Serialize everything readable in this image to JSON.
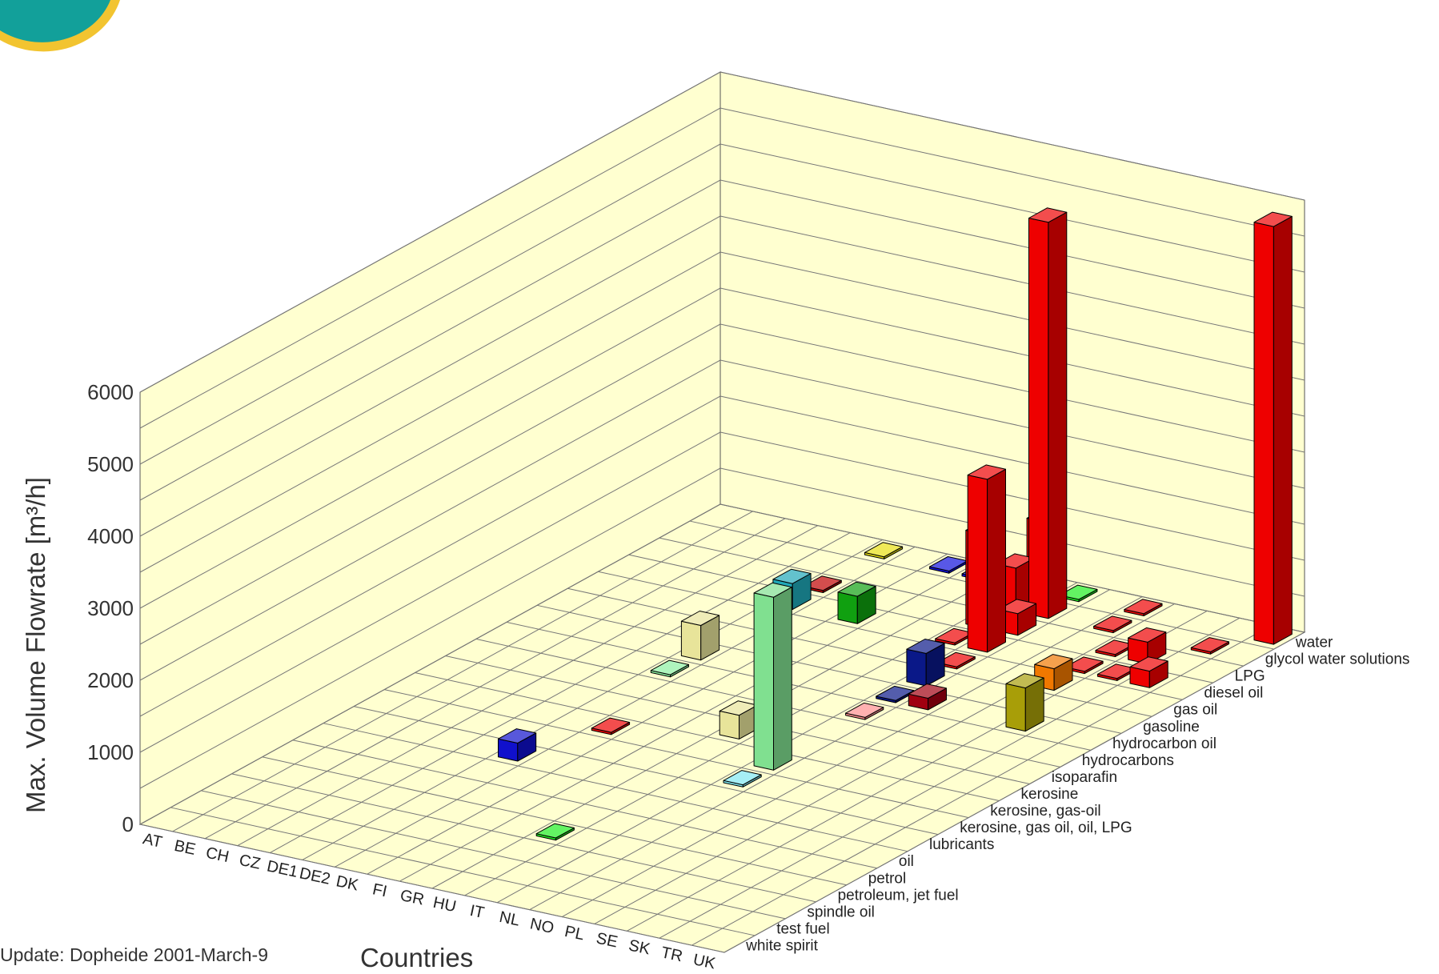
{
  "chart_data": {
    "type": "bar3d",
    "ylabel": "Max. Volume Flowrate [m³/h]",
    "xlabel": "Countries",
    "ylim": [
      0,
      6000
    ],
    "yticks": [
      0,
      1000,
      2000,
      3000,
      4000,
      5000,
      6000
    ],
    "countries": [
      "AT",
      "BE",
      "CH",
      "CZ",
      "DE1",
      "DE2",
      "DK",
      "FI",
      "GR",
      "HU",
      "IT",
      "NL",
      "NO",
      "PL",
      "SE",
      "SK",
      "TR",
      "UK"
    ],
    "fluids": [
      "white spirit",
      "test fuel",
      "spindle oil",
      "petroleum, jet fuel",
      "petrol",
      "oil",
      "lubricants",
      "kerosine, gas oil, oil, LPG",
      "kerosine, gas-oil",
      "kerosine",
      "isoparafin",
      "hydrocarbons",
      "hydrocarbon oil",
      "gasoline",
      "gas oil",
      "diesel oil",
      "LPG",
      "glycol water solutions",
      "water"
    ],
    "grid": true,
    "bars": [
      {
        "country": "DE2",
        "fluid": "lubricants",
        "value": 250,
        "color": "#1010cc"
      },
      {
        "country": "DE2",
        "fluid": "hydrocarbon oil",
        "value": 480,
        "color": "#e8e49a"
      },
      {
        "country": "DE2",
        "fluid": "hydrocarbons",
        "value": 0,
        "color": "#8cf0a0"
      },
      {
        "country": "DE2",
        "fluid": "diesel oil",
        "value": 360,
        "color": "#20a8b8"
      },
      {
        "country": "DE2",
        "fluid": "LPG",
        "value": 0,
        "color": "#c00000"
      },
      {
        "country": "DE2",
        "fluid": "water",
        "value": 0,
        "color": "#e8e010"
      },
      {
        "country": "DK",
        "fluid": "kerosine, gas-oil",
        "value": 0,
        "color": "#ee0000"
      },
      {
        "country": "FI",
        "fluid": "diesel oil",
        "value": 380,
        "color": "#10a010"
      },
      {
        "country": "FI",
        "fluid": "water",
        "value": 0,
        "color": "#1010dd"
      },
      {
        "country": "GR",
        "fluid": "water",
        "value": 0,
        "color": "#1010ee"
      },
      {
        "country": "HU",
        "fluid": "petroleum, jet fuel",
        "value": 0,
        "color": "#20ee20"
      },
      {
        "country": "HU",
        "fluid": "isoparafin",
        "value": 150,
        "color": "#900000"
      },
      {
        "country": "HU",
        "fluid": "kerosine",
        "value": 330,
        "color": "#e8e49a"
      },
      {
        "country": "IT",
        "fluid": "water",
        "value": 1000,
        "color": "#ee0000"
      },
      {
        "country": "IT",
        "fluid": "glycol water solutions",
        "value": 600,
        "color": "#ee0000"
      },
      {
        "country": "IT",
        "fluid": "LPG",
        "value": 1300,
        "color": "#ee0000"
      },
      {
        "country": "IT",
        "fluid": "diesel oil",
        "value": 0,
        "color": "#ee0000"
      },
      {
        "country": "NL",
        "fluid": "kerosine, gas oil, oil, LPG",
        "value": 0,
        "color": "#80e8f0"
      },
      {
        "country": "NL",
        "fluid": "hydrocarbons",
        "value": 0,
        "color": "#ff9090"
      },
      {
        "country": "NL",
        "fluid": "kerosine, gas-oil",
        "value": 2400,
        "color": "#80e090"
      },
      {
        "country": "NL",
        "fluid": "hydrocarbon oil",
        "value": 0,
        "color": "#0a1888"
      },
      {
        "country": "NL",
        "fluid": "gasoline",
        "value": 450,
        "color": "#0a1888"
      },
      {
        "country": "NL",
        "fluid": "gas oil",
        "value": 0,
        "color": "#ee0000"
      },
      {
        "country": "NL",
        "fluid": "diesel oil",
        "value": 2400,
        "color": "#ee0000"
      },
      {
        "country": "NL",
        "fluid": "LPG",
        "value": 300,
        "color": "#ee0000"
      },
      {
        "country": "NL",
        "fluid": "glycol water solutions",
        "value": 5500,
        "color": "#ee0000"
      },
      {
        "country": "NL",
        "fluid": "water",
        "value": 0,
        "color": "#20ee20"
      },
      {
        "country": "NO",
        "fluid": "hydrocarbon oil",
        "value": 160,
        "color": "#a00010"
      },
      {
        "country": "PL",
        "fluid": "water",
        "value": 0,
        "color": "#ee0000"
      },
      {
        "country": "PL",
        "fluid": "glycol water solutions",
        "value": 0,
        "color": "#ee0000"
      },
      {
        "country": "SE",
        "fluid": "gas oil",
        "value": 300,
        "color": "#f07800"
      },
      {
        "country": "SE",
        "fluid": "diesel oil",
        "value": 0,
        "color": "#ee0000"
      },
      {
        "country": "SE",
        "fluid": "LPG",
        "value": 0,
        "color": "#ee0000"
      },
      {
        "country": "SK",
        "fluid": "hydrocarbon oil",
        "value": 600,
        "color": "#a89e08"
      },
      {
        "country": "SK",
        "fluid": "diesel oil",
        "value": 0,
        "color": "#ee0000"
      },
      {
        "country": "SK",
        "fluid": "LPG",
        "value": 300,
        "color": "#ee0000"
      },
      {
        "country": "TR",
        "fluid": "diesel oil",
        "value": 230,
        "color": "#ee0000"
      },
      {
        "country": "TR",
        "fluid": "glycol water solutions",
        "value": 0,
        "color": "#ee0000"
      },
      {
        "country": "UK",
        "fluid": "water",
        "value": 5800,
        "color": "#ee0000"
      }
    ]
  },
  "footer": {
    "update_note": "Update: Dopheide 2001-March-9"
  }
}
